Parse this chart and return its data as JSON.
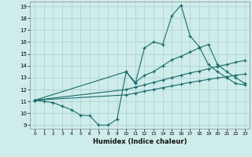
{
  "bg_color": "#ceecea",
  "grid_color": "#aacfcc",
  "line_color": "#1a6b6b",
  "xlabel": "Humidex (Indice chaleur)",
  "xlim_min": -0.5,
  "xlim_max": 23.5,
  "ylim_min": 8.7,
  "ylim_max": 19.4,
  "xticks": [
    0,
    1,
    2,
    3,
    4,
    5,
    6,
    7,
    8,
    9,
    10,
    11,
    12,
    13,
    14,
    15,
    16,
    17,
    18,
    19,
    20,
    21,
    22,
    23
  ],
  "yticks": [
    9,
    10,
    11,
    12,
    13,
    14,
    15,
    16,
    17,
    18,
    19
  ],
  "line1_x": [
    0,
    1,
    2,
    3,
    4,
    5,
    6,
    7,
    8,
    9,
    10,
    11,
    12,
    13,
    14,
    15,
    16,
    17,
    18,
    19,
    20,
    21,
    22,
    23
  ],
  "line1_y": [
    11.1,
    11.0,
    10.9,
    10.6,
    10.3,
    9.85,
    9.8,
    9.0,
    9.0,
    9.5,
    13.5,
    12.5,
    15.5,
    16.0,
    15.8,
    18.2,
    19.1,
    16.5,
    15.6,
    14.1,
    13.5,
    13.0,
    12.5,
    12.4
  ],
  "line2_x": [
    0,
    10,
    11,
    12,
    13,
    14,
    15,
    16,
    17,
    18,
    19,
    20,
    21,
    22,
    23
  ],
  "line2_y": [
    11.1,
    13.5,
    12.6,
    13.2,
    13.5,
    14.0,
    14.5,
    14.8,
    15.15,
    15.5,
    15.8,
    14.1,
    13.5,
    13.0,
    12.5
  ],
  "line3_x": [
    0,
    10,
    11,
    12,
    13,
    14,
    15,
    16,
    17,
    18,
    19,
    20,
    21,
    22,
    23
  ],
  "line3_y": [
    11.1,
    12.0,
    12.2,
    12.4,
    12.6,
    12.8,
    13.0,
    13.2,
    13.4,
    13.55,
    13.75,
    13.95,
    14.1,
    14.3,
    14.45
  ],
  "line4_x": [
    0,
    10,
    11,
    12,
    13,
    14,
    15,
    16,
    17,
    18,
    19,
    20,
    21,
    22,
    23
  ],
  "line4_y": [
    11.1,
    11.55,
    11.7,
    11.85,
    12.0,
    12.15,
    12.3,
    12.45,
    12.6,
    12.72,
    12.85,
    12.97,
    13.08,
    13.2,
    13.3
  ]
}
